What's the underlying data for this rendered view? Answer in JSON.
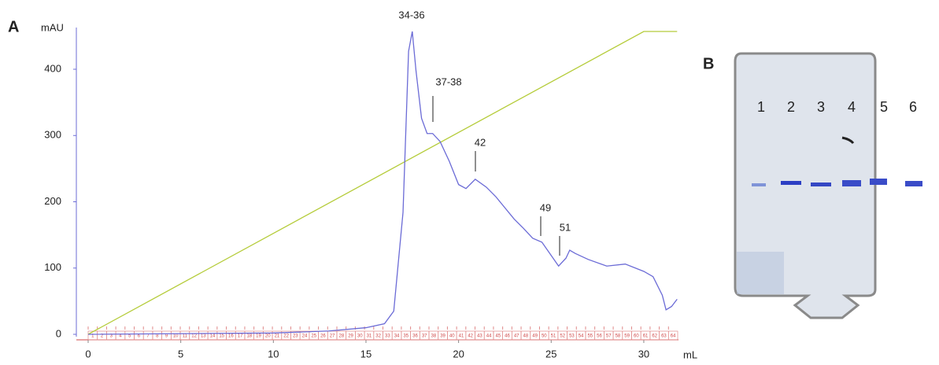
{
  "panel_labels": [
    "A",
    "B"
  ],
  "chart_data": {
    "type": "line",
    "y_label": "mAU",
    "x_label": "mL",
    "xlim": [
      0,
      32
    ],
    "ylim": [
      0,
      457
    ],
    "xticks": [
      0,
      5,
      10,
      15,
      20,
      25,
      30
    ],
    "yticks": [
      0,
      100,
      200,
      300,
      400
    ],
    "series": [
      {
        "name": "UV",
        "color": "#6b6bd6",
        "x": [
          0,
          10,
          13,
          15,
          16,
          16.5,
          17,
          17.3,
          17.5,
          17.7,
          18,
          18.3,
          18.6,
          19,
          19.5,
          20,
          20.4,
          20.9,
          21.5,
          22,
          23,
          23.5,
          24,
          24.5,
          25,
          25.4,
          25.8,
          26,
          26.3,
          27,
          28,
          29,
          30,
          30.5,
          31,
          31.2,
          31.5,
          31.8
        ],
        "values": [
          0,
          2,
          5,
          10,
          16,
          35,
          184,
          427,
          457,
          398,
          326,
          303,
          303,
          291,
          261,
          226,
          220,
          234,
          222,
          208,
          174,
          160,
          145,
          139,
          119,
          103,
          115,
          127,
          122,
          113,
          103,
          106,
          95,
          87,
          59,
          37,
          42,
          53
        ]
      },
      {
        "name": "Gradient",
        "color": "#b5cc3a",
        "x": [
          0,
          30,
          31.8
        ],
        "values": [
          0,
          457,
          457
        ]
      }
    ],
    "annotations": [
      "34-36",
      "37-38",
      "42",
      "49",
      "51"
    ],
    "fractions": [
      "1",
      "2",
      "3",
      "4",
      "5",
      "6",
      "7",
      "8",
      "9",
      "10",
      "11",
      "12",
      "13",
      "14",
      "15",
      "16",
      "17",
      "18",
      "19",
      "20",
      "21",
      "22",
      "23",
      "24",
      "25",
      "26",
      "27",
      "28",
      "29",
      "30",
      "31",
      "32",
      "33",
      "34",
      "35",
      "36",
      "37",
      "38",
      "39",
      "40",
      "41",
      "42",
      "43",
      "44",
      "45",
      "46",
      "47",
      "48",
      "49",
      "50",
      "51",
      "52",
      "53",
      "54",
      "55",
      "56",
      "57",
      "58",
      "59",
      "60",
      "61",
      "62",
      "63",
      "64"
    ]
  },
  "gel": {
    "lane_labels": [
      "1",
      "2",
      "3",
      "4",
      "5",
      "6"
    ]
  }
}
